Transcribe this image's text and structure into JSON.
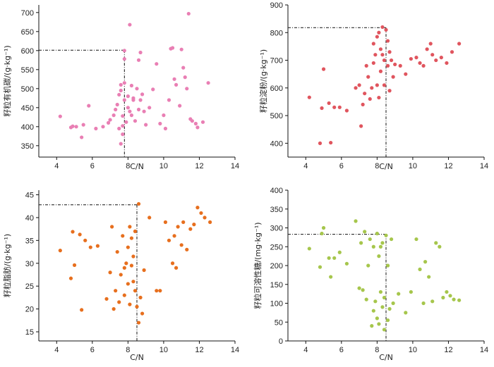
{
  "chart_data": [
    {
      "type": "scatter",
      "title": "",
      "xlabel": "C/N",
      "ylabel": "籽粒有机碳/(g·kg⁻¹)",
      "xlim": [
        3,
        14
      ],
      "ylim": [
        320,
        720
      ],
      "xticks": [
        4,
        6,
        8,
        10,
        12,
        14
      ],
      "yticks": [
        350,
        400,
        450,
        500,
        550,
        600,
        650,
        700
      ],
      "grid": false,
      "color": "#e97fb4",
      "reference_point": {
        "x": 7.8,
        "y": 601
      },
      "points": [
        [
          4.2,
          427
        ],
        [
          4.8,
          398
        ],
        [
          4.9,
          401
        ],
        [
          5.1,
          400
        ],
        [
          5.4,
          372
        ],
        [
          5.5,
          405
        ],
        [
          5.8,
          455
        ],
        [
          6.2,
          395
        ],
        [
          6.6,
          400
        ],
        [
          6.9,
          410
        ],
        [
          7.0,
          418
        ],
        [
          7.2,
          430
        ],
        [
          7.3,
          445
        ],
        [
          7.4,
          458
        ],
        [
          7.5,
          484
        ],
        [
          7.6,
          495
        ],
        [
          7.6,
          510
        ],
        [
          7.5,
          395
        ],
        [
          7.6,
          355
        ],
        [
          7.7,
          380
        ],
        [
          7.7,
          402
        ],
        [
          7.7,
          428
        ],
        [
          7.8,
          470
        ],
        [
          7.8,
          515
        ],
        [
          7.8,
          600
        ],
        [
          7.8,
          578
        ],
        [
          7.9,
          412
        ],
        [
          8.0,
          450
        ],
        [
          8.0,
          480
        ],
        [
          8.1,
          440
        ],
        [
          8.1,
          668
        ],
        [
          8.2,
          430
        ],
        [
          8.2,
          508
        ],
        [
          8.3,
          470
        ],
        [
          8.3,
          475
        ],
        [
          8.4,
          415
        ],
        [
          8.5,
          500
        ],
        [
          8.6,
          445
        ],
        [
          8.6,
          575
        ],
        [
          8.7,
          595
        ],
        [
          8.7,
          470
        ],
        [
          8.8,
          485
        ],
        [
          8.9,
          440
        ],
        [
          9.0,
          405
        ],
        [
          9.2,
          450
        ],
        [
          9.4,
          498
        ],
        [
          9.6,
          565
        ],
        [
          9.8,
          408
        ],
        [
          10.0,
          430
        ],
        [
          10.1,
          395
        ],
        [
          10.3,
          470
        ],
        [
          10.4,
          605
        ],
        [
          10.5,
          607
        ],
        [
          10.6,
          525
        ],
        [
          10.7,
          510
        ],
        [
          10.9,
          455
        ],
        [
          11.0,
          603
        ],
        [
          11.1,
          555
        ],
        [
          11.2,
          530
        ],
        [
          11.3,
          500
        ],
        [
          11.4,
          697
        ],
        [
          11.5,
          420
        ],
        [
          11.6,
          415
        ],
        [
          11.8,
          408
        ],
        [
          11.9,
          398
        ],
        [
          12.2,
          412
        ],
        [
          12.5,
          515
        ]
      ]
    },
    {
      "type": "scatter",
      "title": "",
      "xlabel": "C/N",
      "ylabel": "籽粒淀粉/(g·kg⁻¹)",
      "xlim": [
        3,
        14
      ],
      "ylim": [
        350,
        900
      ],
      "xticks": [
        4,
        6,
        8,
        10,
        12,
        14
      ],
      "yticks": [
        400,
        500,
        600,
        700,
        800,
        900
      ],
      "grid": false,
      "color": "#e0555e",
      "reference_point": {
        "x": 8.5,
        "y": 818
      },
      "points": [
        [
          4.2,
          566
        ],
        [
          4.8,
          400
        ],
        [
          4.9,
          527
        ],
        [
          5.0,
          668
        ],
        [
          5.3,
          545
        ],
        [
          5.4,
          402
        ],
        [
          5.6,
          530
        ],
        [
          5.9,
          530
        ],
        [
          6.3,
          518
        ],
        [
          6.8,
          600
        ],
        [
          7.0,
          610
        ],
        [
          7.1,
          462
        ],
        [
          7.2,
          540
        ],
        [
          7.3,
          580
        ],
        [
          7.4,
          680
        ],
        [
          7.5,
          640
        ],
        [
          7.6,
          560
        ],
        [
          7.7,
          600
        ],
        [
          7.8,
          690
        ],
        [
          7.8,
          760
        ],
        [
          7.9,
          720
        ],
        [
          8.0,
          785
        ],
        [
          8.0,
          610
        ],
        [
          8.1,
          800
        ],
        [
          8.1,
          565
        ],
        [
          8.2,
          740
        ],
        [
          8.2,
          660
        ],
        [
          8.3,
          820
        ],
        [
          8.3,
          720
        ],
        [
          8.4,
          610
        ],
        [
          8.4,
          700
        ],
        [
          8.5,
          810
        ],
        [
          8.6,
          770
        ],
        [
          8.6,
          680
        ],
        [
          8.7,
          730
        ],
        [
          8.7,
          590
        ],
        [
          8.8,
          700
        ],
        [
          8.9,
          640
        ],
        [
          9.0,
          685
        ],
        [
          9.3,
          680
        ],
        [
          9.6,
          650
        ],
        [
          9.9,
          705
        ],
        [
          10.2,
          710
        ],
        [
          10.4,
          690
        ],
        [
          10.6,
          680
        ],
        [
          10.8,
          740
        ],
        [
          11.0,
          760
        ],
        [
          11.1,
          720
        ],
        [
          11.3,
          700
        ],
        [
          11.6,
          710
        ],
        [
          11.9,
          690
        ],
        [
          12.2,
          730
        ],
        [
          12.6,
          760
        ]
      ]
    },
    {
      "type": "scatter",
      "title": "",
      "xlabel": "C/N",
      "ylabel": "籽粒脂肪/(g·kg⁻¹)",
      "xlim": [
        3,
        14
      ],
      "ylim": [
        13,
        46
      ],
      "xticks": [
        4,
        6,
        8,
        10,
        12,
        14
      ],
      "yticks": [
        15,
        20,
        25,
        30,
        35,
        40,
        45
      ],
      "grid": false,
      "color": "#e76f1e",
      "reference_point": {
        "x": 8.5,
        "y": 42.8
      },
      "points": [
        [
          4.2,
          32.8
        ],
        [
          4.8,
          26.7
        ],
        [
          4.9,
          36.9
        ],
        [
          5.0,
          29.6
        ],
        [
          5.3,
          36.3
        ],
        [
          5.4,
          19.8
        ],
        [
          5.6,
          35.0
        ],
        [
          5.9,
          33.5
        ],
        [
          6.3,
          33.8
        ],
        [
          6.8,
          22.2
        ],
        [
          7.0,
          28.0
        ],
        [
          7.1,
          38.0
        ],
        [
          7.2,
          20.0
        ],
        [
          7.3,
          24.0
        ],
        [
          7.4,
          32.5
        ],
        [
          7.5,
          21.5
        ],
        [
          7.6,
          27.5
        ],
        [
          7.7,
          36.0
        ],
        [
          7.8,
          29.0
        ],
        [
          7.8,
          23.0
        ],
        [
          7.9,
          30.0
        ],
        [
          8.0,
          33.5
        ],
        [
          8.0,
          25.5
        ],
        [
          8.1,
          38.0
        ],
        [
          8.1,
          21.0
        ],
        [
          8.2,
          29.5
        ],
        [
          8.2,
          35.5
        ],
        [
          8.3,
          26.0
        ],
        [
          8.3,
          31.5
        ],
        [
          8.4,
          24.0
        ],
        [
          8.4,
          37.0
        ],
        [
          8.5,
          20.5
        ],
        [
          8.6,
          17.0
        ],
        [
          8.6,
          43.0
        ],
        [
          8.7,
          22.5
        ],
        [
          8.8,
          19.0
        ],
        [
          8.9,
          28.5
        ],
        [
          9.2,
          40.0
        ],
        [
          9.6,
          24.0
        ],
        [
          9.8,
          24.0
        ],
        [
          10.1,
          39.0
        ],
        [
          10.3,
          35.0
        ],
        [
          10.5,
          30.0
        ],
        [
          10.6,
          36.0
        ],
        [
          10.7,
          29.0
        ],
        [
          10.8,
          38.0
        ],
        [
          11.0,
          34.0
        ],
        [
          11.1,
          39.0
        ],
        [
          11.3,
          33.0
        ],
        [
          11.5,
          37.5
        ],
        [
          11.7,
          38.5
        ],
        [
          11.9,
          42.2
        ],
        [
          12.1,
          41.0
        ],
        [
          12.3,
          40.0
        ],
        [
          12.6,
          39.0
        ]
      ]
    },
    {
      "type": "scatter",
      "title": "",
      "xlabel": "C/N",
      "ylabel": "籽粒可溶性糖/(mg·kg⁻¹)",
      "xlim": [
        3,
        14
      ],
      "ylim": [
        0,
        400
      ],
      "xticks": [
        4,
        6,
        8,
        10,
        12,
        14
      ],
      "yticks": [
        0,
        50,
        100,
        150,
        200,
        250,
        300,
        350,
        400
      ],
      "grid": false,
      "color": "#a6c64c",
      "reference_point": {
        "x": 8.5,
        "y": 283
      },
      "points": [
        [
          4.2,
          245
        ],
        [
          4.8,
          196
        ],
        [
          4.9,
          285
        ],
        [
          5.0,
          300
        ],
        [
          5.3,
          220
        ],
        [
          5.4,
          170
        ],
        [
          5.6,
          220
        ],
        [
          5.9,
          235
        ],
        [
          6.3,
          205
        ],
        [
          6.8,
          318
        ],
        [
          7.0,
          140
        ],
        [
          7.1,
          260
        ],
        [
          7.2,
          135
        ],
        [
          7.3,
          290
        ],
        [
          7.4,
          110
        ],
        [
          7.5,
          200
        ],
        [
          7.6,
          270
        ],
        [
          7.7,
          40
        ],
        [
          7.8,
          250
        ],
        [
          7.8,
          80
        ],
        [
          7.9,
          105
        ],
        [
          8.0,
          285
        ],
        [
          8.0,
          60
        ],
        [
          8.1,
          225
        ],
        [
          8.1,
          45
        ],
        [
          8.2,
          250
        ],
        [
          8.2,
          130
        ],
        [
          8.3,
          90
        ],
        [
          8.3,
          260
        ],
        [
          8.4,
          30
        ],
        [
          8.4,
          115
        ],
        [
          8.5,
          280
        ],
        [
          8.6,
          55
        ],
        [
          8.6,
          200
        ],
        [
          8.7,
          85
        ],
        [
          8.8,
          270
        ],
        [
          8.9,
          100
        ],
        [
          9.2,
          125
        ],
        [
          9.6,
          75
        ],
        [
          9.9,
          130
        ],
        [
          10.2,
          270
        ],
        [
          10.4,
          190
        ],
        [
          10.6,
          100
        ],
        [
          10.7,
          210
        ],
        [
          10.9,
          170
        ],
        [
          11.1,
          105
        ],
        [
          11.3,
          260
        ],
        [
          11.5,
          250
        ],
        [
          11.7,
          115
        ],
        [
          11.9,
          130
        ],
        [
          12.1,
          120
        ],
        [
          12.3,
          110
        ],
        [
          12.6,
          108
        ]
      ]
    }
  ]
}
